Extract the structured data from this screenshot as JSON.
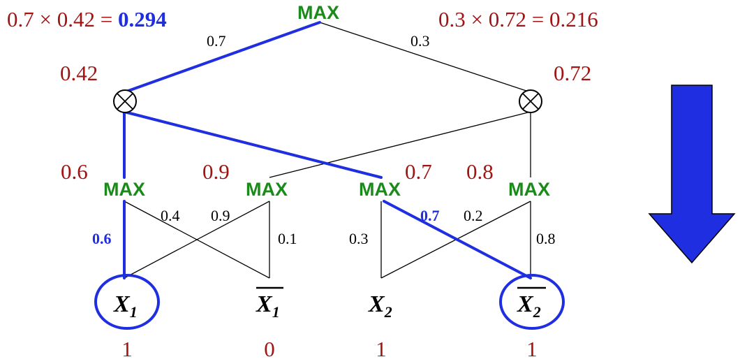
{
  "colors": {
    "max_green": "#1a8a1a",
    "value_red": "#a01414",
    "highlight_blue": "#1f2ee0",
    "line_black": "#000000",
    "arrow_blue": "#1f2ee0"
  },
  "top": {
    "max_label": "MAX",
    "left_expr": "0.7 × 0.42 = ",
    "left_result": "0.294",
    "right_expr": "0.3 × 0.72 = 0.216",
    "weight_left": "0.7",
    "weight_right": "0.3"
  },
  "products": {
    "left_value": "0.42",
    "right_value": "0.72",
    "symbol": "⊗"
  },
  "max_nodes": [
    {
      "label": "MAX",
      "value": "0.6"
    },
    {
      "label": "MAX",
      "value": "0.9"
    },
    {
      "label": "MAX",
      "value": "0.7"
    },
    {
      "label": "MAX",
      "value": "0.8"
    }
  ],
  "edge_weights": {
    "m1_to_x1": "0.6",
    "m1_to_nx1": "0.4",
    "m2_to_x1": "0.9",
    "m2_to_nx1": "0.1",
    "m3_to_x2": "0.3",
    "m3_to_nx2": "0.7",
    "m4_to_x2": "0.2",
    "m4_to_nx2": "0.8"
  },
  "leaves": [
    {
      "name": "X",
      "sub": "1",
      "negated": false,
      "circled": true,
      "assignment": "1"
    },
    {
      "name": "X",
      "sub": "1",
      "negated": true,
      "circled": false,
      "assignment": "0"
    },
    {
      "name": "X",
      "sub": "2",
      "negated": false,
      "circled": false,
      "assignment": "1"
    },
    {
      "name": "X",
      "sub": "2",
      "negated": true,
      "circled": true,
      "assignment": "1"
    }
  ],
  "direction_arrow_icon": "down-arrow-icon"
}
